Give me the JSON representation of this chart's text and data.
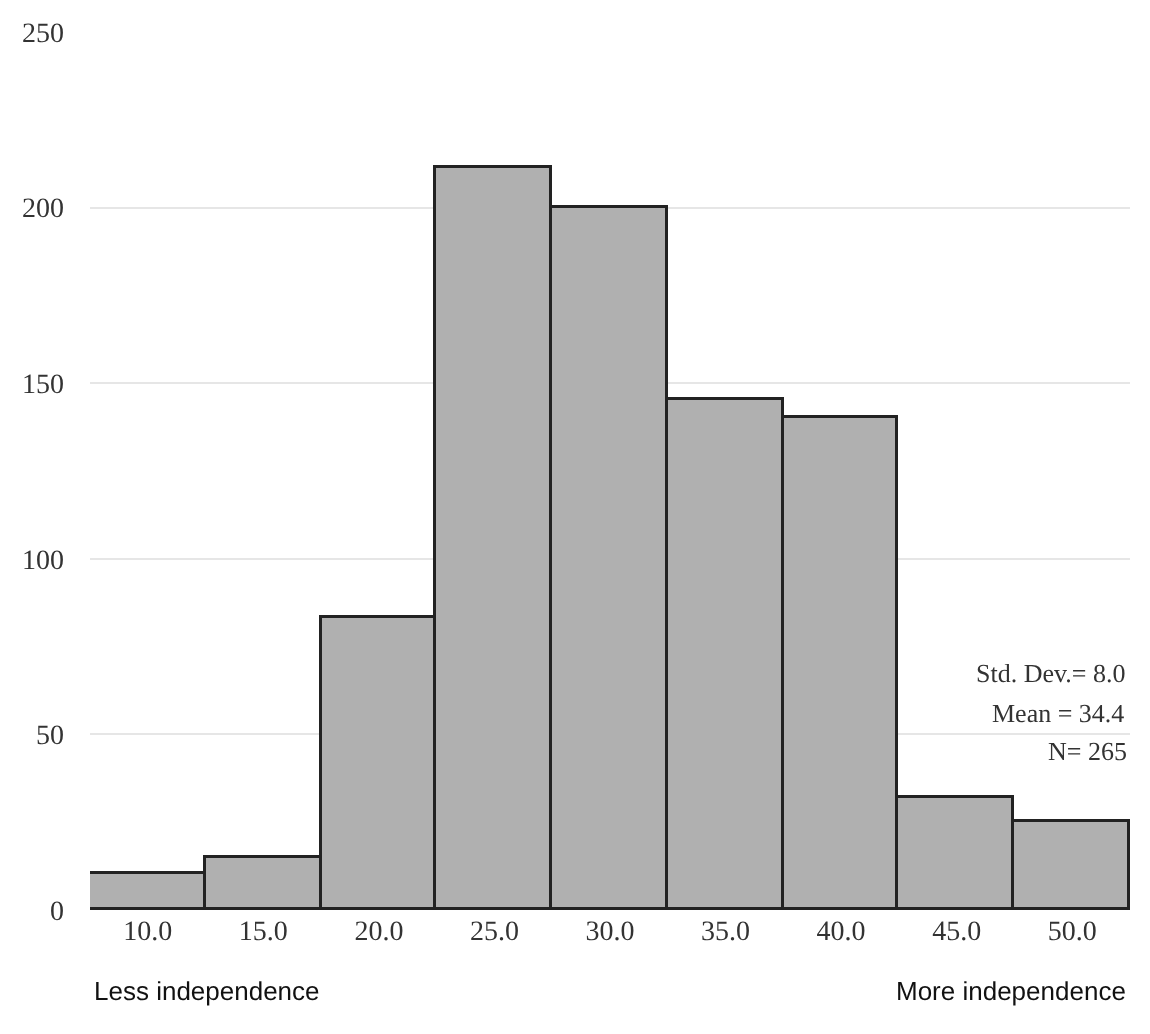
{
  "chart_data": {
    "type": "histogram",
    "bins": [
      7.5,
      12.5,
      17.5,
      22.5,
      27.5,
      32.5,
      37.5,
      42.5,
      47.5,
      52.5
    ],
    "values": [
      10,
      15,
      83,
      211,
      200,
      145,
      140,
      32,
      25
    ],
    "color": "#b0b0b0",
    "xlim": [
      7.5,
      52.5
    ],
    "xticks": [
      {
        "value": 10,
        "label": "10.0"
      },
      {
        "value": 15,
        "label": "15.0"
      },
      {
        "value": 20,
        "label": "20.0"
      },
      {
        "value": 25,
        "label": "25.0"
      },
      {
        "value": 30,
        "label": "30.0"
      },
      {
        "value": 35,
        "label": "35.0"
      },
      {
        "value": 40,
        "label": "40.0"
      },
      {
        "value": 45,
        "label": "45.0"
      },
      {
        "value": 50,
        "label": "50.0"
      }
    ],
    "ylim": [
      0,
      250
    ],
    "yticks": [
      0,
      50,
      100,
      150,
      200,
      250
    ],
    "grid": "y",
    "annotations": [
      "Std. Dev.= 8.0",
      "Mean = 34.4",
      "N= 265",
      "Less independence",
      "More independence"
    ]
  }
}
